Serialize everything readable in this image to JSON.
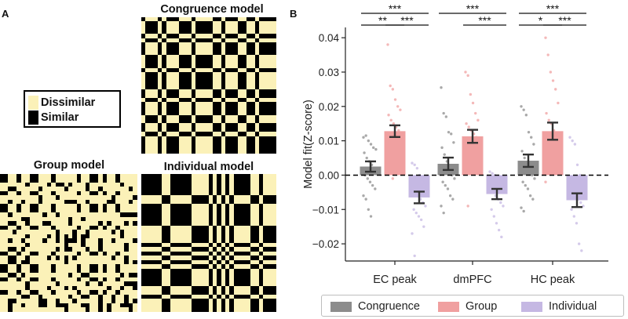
{
  "panel_a": {
    "label": "A",
    "matrices": {
      "congruence_title": "Congruence model",
      "group_title": "Group model",
      "individual_title": "Individual model"
    },
    "legend": {
      "dissimilar": "Dissimilar",
      "similar": "Similar",
      "dissimilar_color": "#fbf1b8",
      "similar_color": "#000000"
    }
  },
  "panel_b": {
    "label": "B"
  },
  "chart_data": {
    "type": "bar",
    "categories": [
      "EC peak",
      "dmPFC",
      "HC peak"
    ],
    "ylabel": "Model fit(Z-score)",
    "xlabel": "",
    "ylim": [
      -0.025,
      0.043
    ],
    "yticks": [
      -0.02,
      -0.01,
      0.0,
      0.01,
      0.02,
      0.03,
      0.04
    ],
    "ytick_labels": [
      "−0.02",
      "−0.01",
      "0.00",
      "0.01",
      "0.02",
      "0.03",
      "0.04"
    ],
    "zero_line": "dashed",
    "grid": false,
    "legend_position": "bottom",
    "series": [
      {
        "name": "Congruence",
        "color": "#8c8c8c",
        "values": [
          0.0025,
          0.0033,
          0.0042
        ],
        "errors": [
          0.0015,
          0.0018,
          0.0018
        ],
        "points": [
          [
            0.011,
            0.0115,
            0.01,
            0.009,
            0.008,
            0.0075,
            0.0065,
            0.005,
            0.004,
            0.003,
            0.002,
            0.001,
            0.0,
            -0.001,
            -0.002,
            -0.003,
            -0.004,
            -0.006,
            -0.007,
            -0.01,
            -0.012
          ],
          [
            0.0255,
            0.018,
            0.017,
            0.0125,
            0.012,
            0.0095,
            0.008,
            0.006,
            0.004,
            0.002,
            0.0,
            -0.001,
            -0.002,
            -0.003,
            -0.004,
            -0.006,
            -0.007,
            -0.009,
            -0.011
          ],
          [
            0.02,
            0.019,
            0.0175,
            0.0125,
            0.011,
            0.009,
            0.007,
            0.005,
            0.003,
            0.001,
            0.0,
            -0.001,
            -0.002,
            -0.003,
            -0.004,
            -0.006,
            -0.007,
            -0.0095,
            -0.0105
          ]
        ]
      },
      {
        "name": "Group",
        "color": "#f0a0a0",
        "values": [
          0.0128,
          0.0113,
          0.0128
        ],
        "errors": [
          0.0017,
          0.0019,
          0.0025
        ],
        "points": [
          [
            0.038,
            0.026,
            0.025,
            0.022,
            0.02,
            0.019,
            0.0175,
            0.016,
            0.015,
            0.014,
            0.013,
            0.012,
            0.011,
            0.01,
            0.009,
            0.008,
            0.006,
            0.005,
            0.003,
            -0.001
          ],
          [
            0.03,
            0.029,
            0.0235,
            0.021,
            0.018,
            0.016,
            0.015,
            0.014,
            0.013,
            0.012,
            0.011,
            0.01,
            0.009,
            0.008,
            0.007,
            0.006,
            0.004,
            0.002,
            -0.009
          ],
          [
            0.04,
            0.035,
            0.03,
            0.0275,
            0.025,
            0.021,
            0.018,
            0.016,
            0.015,
            0.013,
            0.012,
            0.011,
            0.01,
            0.009,
            0.008,
            0.006,
            0.004,
            -0.002
          ]
        ]
      },
      {
        "name": "Individual",
        "color": "#c5b8e3",
        "values": [
          -0.0065,
          -0.0055,
          -0.0073
        ],
        "errors": [
          0.0017,
          0.0015,
          0.002
        ],
        "points": [
          [
            0.0035,
            0.003,
            0.002,
            0.0,
            -0.002,
            -0.003,
            -0.004,
            -0.005,
            -0.006,
            -0.007,
            -0.008,
            -0.009,
            -0.01,
            -0.011,
            -0.012,
            -0.013,
            -0.015,
            -0.017,
            -0.0235
          ],
          [
            0.001,
            0.0005,
            0.0,
            -0.001,
            -0.002,
            -0.003,
            -0.004,
            -0.005,
            -0.006,
            -0.007,
            -0.008,
            -0.009,
            -0.01,
            -0.012,
            -0.014,
            -0.016,
            -0.018
          ],
          [
            0.011,
            0.01,
            0.009,
            0.003,
            0.0,
            -0.002,
            -0.003,
            -0.005,
            -0.006,
            -0.007,
            -0.008,
            -0.009,
            -0.01,
            -0.012,
            -0.014,
            -0.02,
            -0.022
          ]
        ]
      }
    ],
    "significance": [
      {
        "category": 0,
        "from": 0,
        "to": 2,
        "level": 0.04,
        "label": "***"
      },
      {
        "category": 0,
        "from": 0,
        "to": 1,
        "level": 0.0365,
        "label": "**"
      },
      {
        "category": 0,
        "from": 1,
        "to": 2,
        "level": 0.0365,
        "label": "***"
      },
      {
        "category": 1,
        "from": 0,
        "to": 2,
        "level": 0.04,
        "label": "***"
      },
      {
        "category": 1,
        "from": 1,
        "to": 2,
        "level": 0.0365,
        "label": "***"
      },
      {
        "category": 2,
        "from": 0,
        "to": 2,
        "level": 0.04,
        "label": "***"
      },
      {
        "category": 2,
        "from": 0,
        "to": 1,
        "level": 0.0365,
        "label": "*"
      },
      {
        "category": 2,
        "from": 1,
        "to": 2,
        "level": 0.0365,
        "label": "***"
      }
    ]
  }
}
